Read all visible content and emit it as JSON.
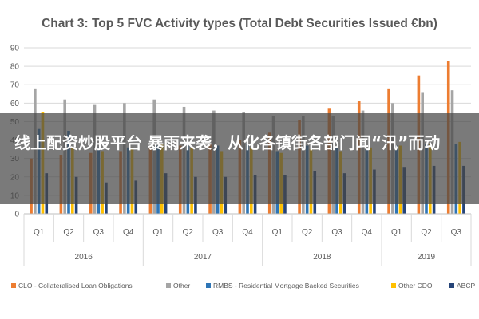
{
  "chart_data": {
    "type": "bar",
    "title": "Chart 3: Top 5 FVC Activity types (Total Debt Securities Issued €bn)",
    "xlabel": "",
    "ylabel": "",
    "ylim": [
      0,
      90
    ],
    "yticks": [
      0,
      10,
      20,
      30,
      40,
      50,
      60,
      70,
      80,
      90
    ],
    "grid": true,
    "legend_position": "bottom",
    "categories": [
      "Q1",
      "Q2",
      "Q3",
      "Q4",
      "Q1",
      "Q2",
      "Q3",
      "Q4",
      "Q1",
      "Q2",
      "Q3",
      "Q4",
      "Q1",
      "Q2",
      "Q3"
    ],
    "year_groups": [
      {
        "label": "2016",
        "count": 4
      },
      {
        "label": "2017",
        "count": 4
      },
      {
        "label": "2018",
        "count": 4
      },
      {
        "label": "2019",
        "count": 3
      }
    ],
    "series": [
      {
        "name": "CLO - Collateralised Loan Obligations",
        "color": "#ED7D31",
        "values": [
          30,
          32,
          33,
          34,
          36,
          37,
          38,
          40,
          44,
          51,
          57,
          61,
          68,
          75,
          83
        ]
      },
      {
        "name": "Other",
        "color": "#A5A5A5",
        "values": [
          68,
          62,
          59,
          60,
          62,
          58,
          56,
          55,
          53,
          53,
          53,
          56,
          60,
          66,
          67
        ]
      },
      {
        "name": "RMBS - Residential Mortgage Backed Securities",
        "color": "#2E75B6",
        "values": [
          46,
          45,
          36,
          36,
          37,
          37,
          37,
          38,
          34,
          37,
          36,
          35,
          37,
          38,
          38
        ]
      },
      {
        "name": "Other CDO",
        "color": "#FFC000",
        "values": [
          55,
          36,
          34,
          36,
          38,
          36,
          34,
          36,
          33,
          35,
          34,
          36,
          37,
          38,
          39
        ]
      },
      {
        "name": "ABCP",
        "color": "#264478",
        "values": [
          22,
          20,
          17,
          18,
          22,
          20,
          20,
          21,
          21,
          23,
          22,
          24,
          25,
          26,
          26
        ]
      }
    ]
  },
  "overlay": {
    "text": "线上配资炒股平台 暴雨来袭，从化各镇街各部门闻“汛”而动"
  }
}
